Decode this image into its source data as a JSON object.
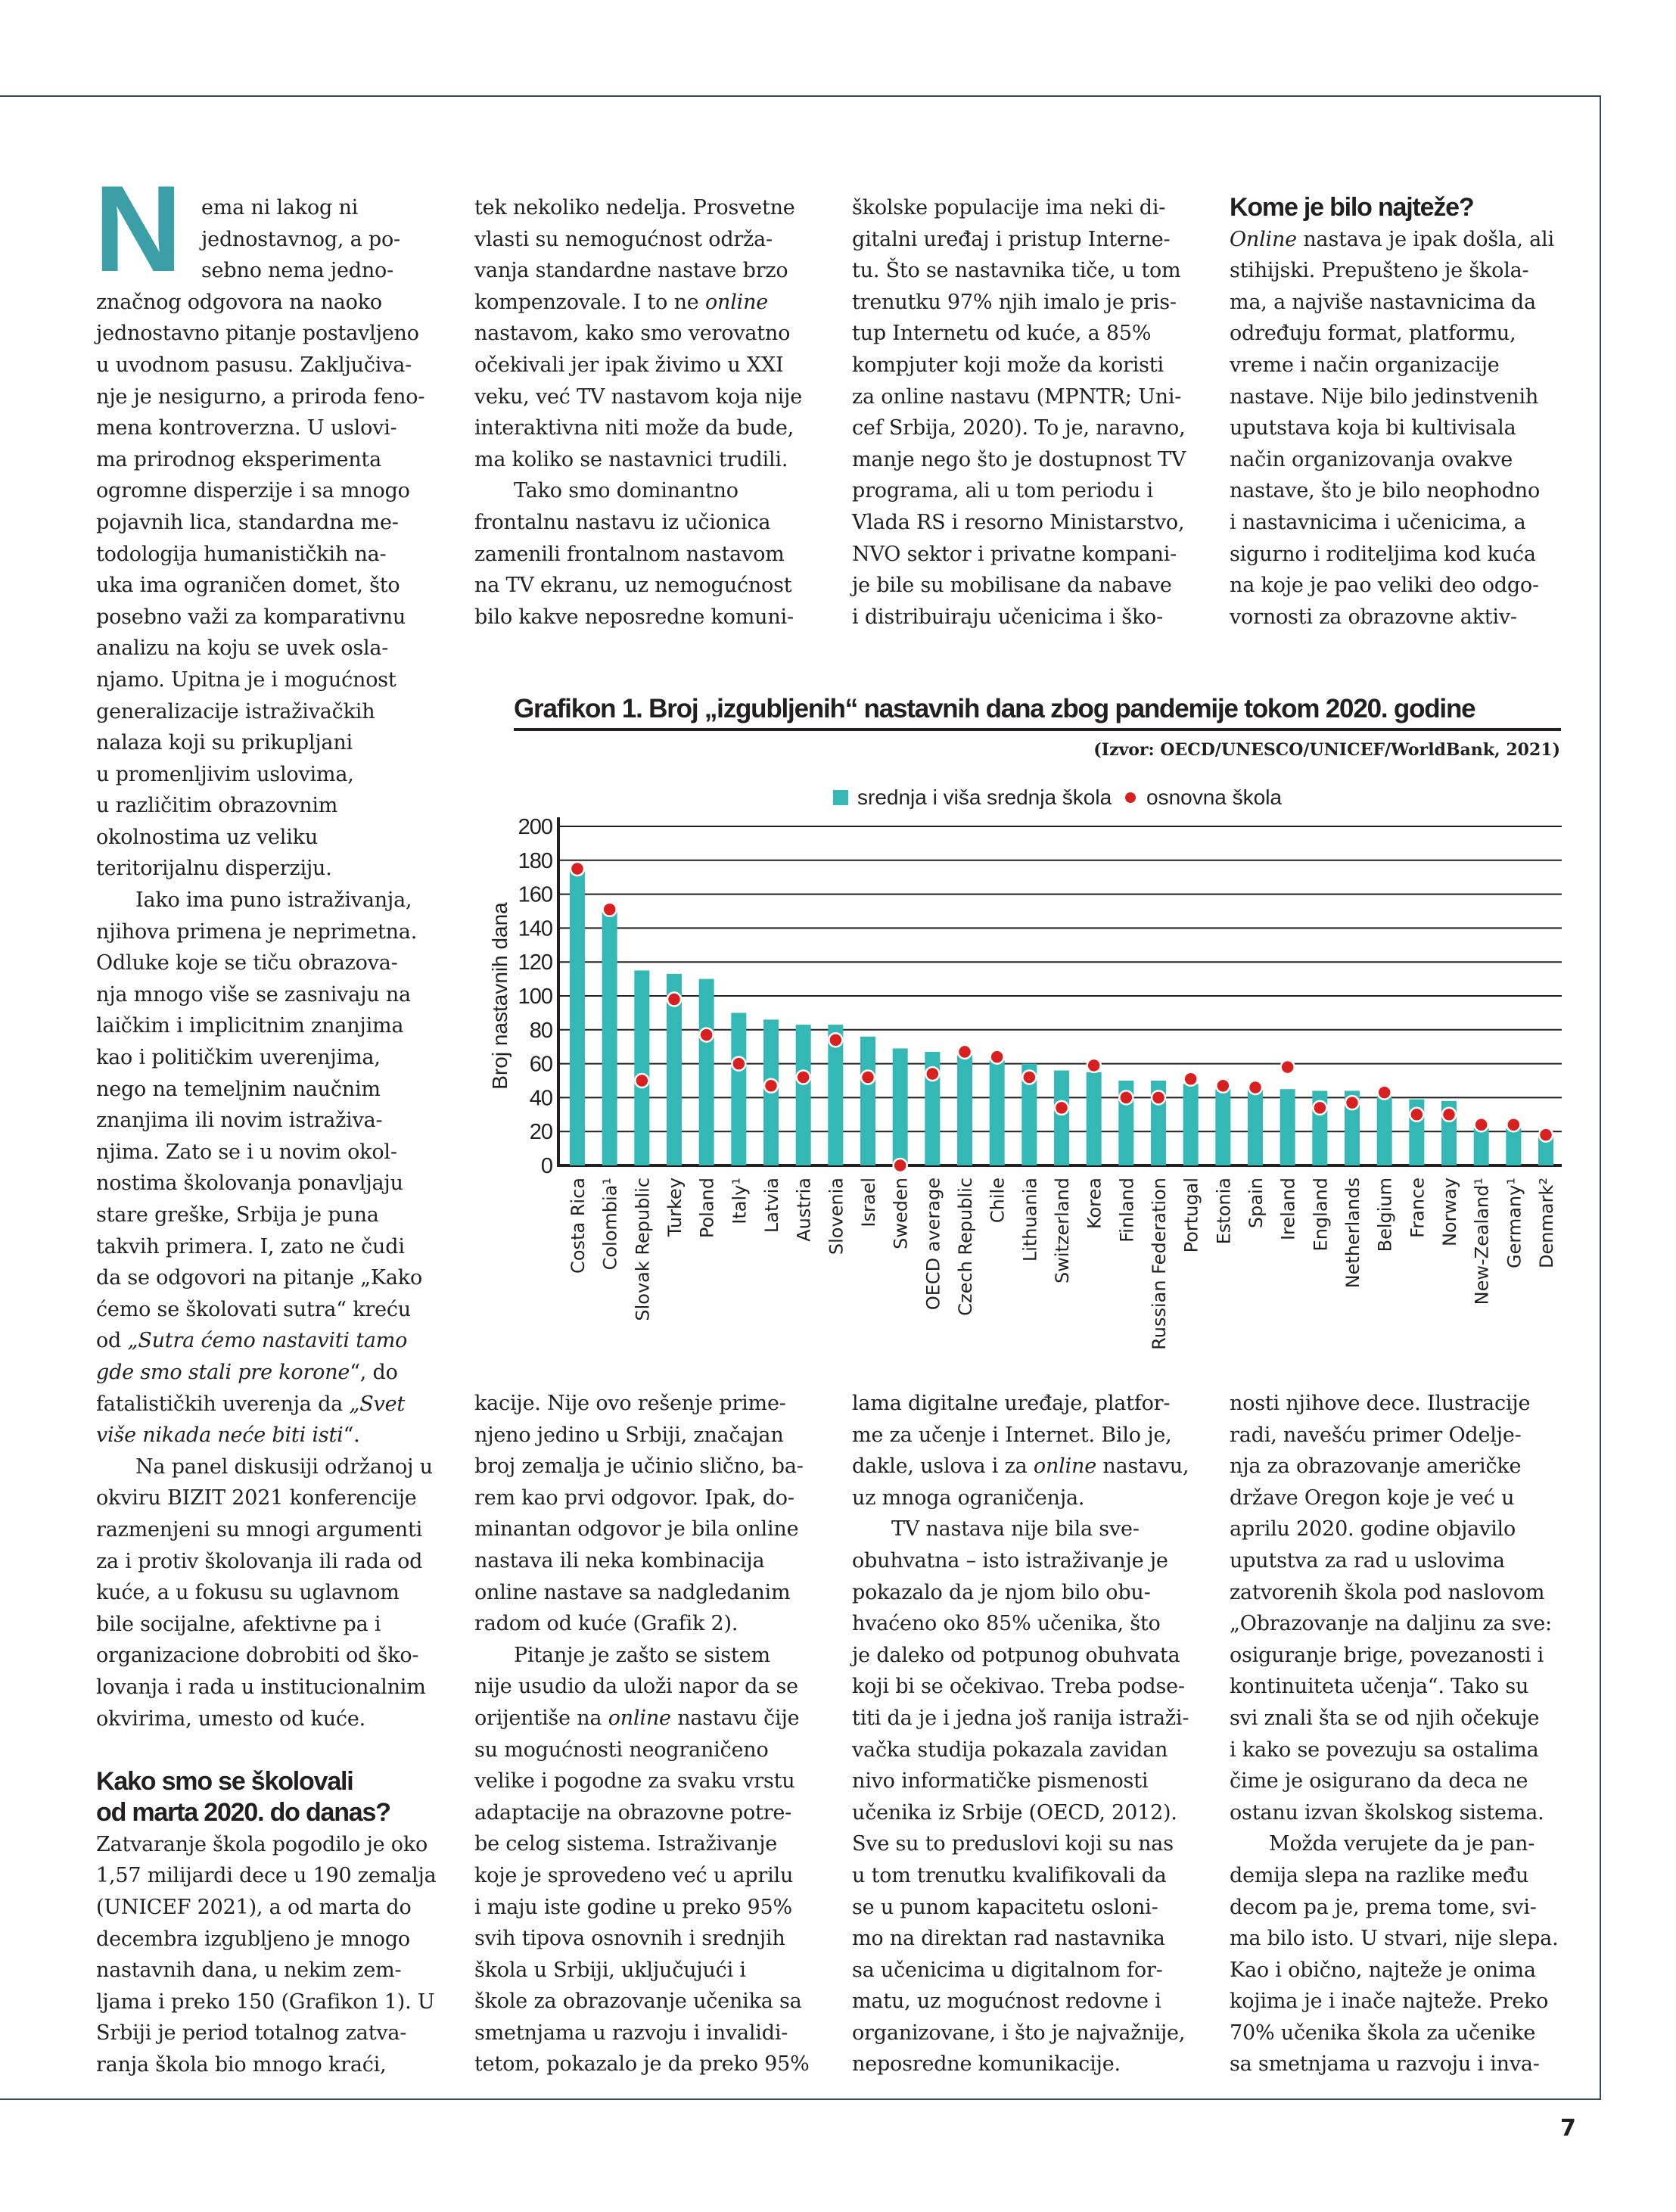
{
  "page_number": "7",
  "dropcap": "N",
  "colors": {
    "bar": "#33b8b5",
    "dot": "#d7201f",
    "dropcap": "#3a9fa6",
    "frame": "#2d4b5c"
  },
  "columns": {
    "c1": [
      {
        "dc": true,
        "s": "ema ni lakog ni"
      },
      {
        "dc": true,
        "s": "jednostavnog, a po-"
      },
      {
        "dc": true,
        "s": "sebno nema jedno-"
      },
      {
        "s": "značnog odgovora na naoko"
      },
      {
        "s": "jednostavno pitanje postavljeno"
      },
      {
        "s": "u uvodnom pasusu. Zaključiva-"
      },
      {
        "s": "nje je nesigurno, a priroda feno-"
      },
      {
        "s": "mena kontroverzna. U uslovi-"
      },
      {
        "s": "ma prirodnog eksperimenta"
      },
      {
        "s": "ogromne disperzije i sa mnogo"
      },
      {
        "s": "pojavnih lica, standardna me-"
      },
      {
        "s": "todologija humanističkih na-"
      },
      {
        "s": "uka ima ograničen domet, što"
      },
      {
        "s": "posebno važi za komparativnu"
      },
      {
        "s": "analizu na koju se uvek osla-"
      },
      {
        "s": "njamo. Upitna je i mogućnost"
      },
      {
        "s": "generalizacije istraživačkih"
      },
      {
        "s": "nalaza koji su prikupljani"
      },
      {
        "s": "u promenljivim uslovima,"
      },
      {
        "s": "u različitim obrazovnim"
      },
      {
        "s": "okolnostima uz veliku"
      },
      {
        "s": "teritorijalnu disperziju."
      },
      {
        "indent": true,
        "s": "Iako ima puno istraživanja,"
      },
      {
        "s": "njihova primena je neprimetna."
      },
      {
        "s": "Odluke koje se tiču obrazova-"
      },
      {
        "s": "nja mnogo više se zasnivaju na"
      },
      {
        "s": "laičkim i implicitnim znanjima"
      },
      {
        "s": "kao i političkim uverenjima,"
      },
      {
        "s": "nego na temeljnim naučnim"
      },
      {
        "s": "znanjima ili novim istraživa-"
      },
      {
        "s": "njima. Zato se i u novim okol-"
      },
      {
        "s": "nostima školovanja ponavljaju"
      },
      {
        "s": "stare greške, Srbija je puna"
      },
      {
        "s": "takvih primera. I, zato ne čudi"
      },
      {
        "s": "da se odgovori na pitanje „Kako"
      },
      {
        "s": "ćemo se školovati sutra“ kreću"
      },
      {
        "s": "od ",
        "it": "„Sutra ćemo nastaviti tamo"
      },
      {
        "it": "gde smo stali pre korone",
        "after": "“, do"
      },
      {
        "s": "fatalističkih uverenja da ",
        "it": "„Svet"
      },
      {
        "it": "više nikada neće biti isti",
        "after": "“."
      },
      {
        "indent": true,
        "s": "Na panel diskusiji održanoj u"
      },
      {
        "s": "okviru BIZIT 2021 konferencije"
      },
      {
        "s": "razmenjeni su mnogi argumenti"
      },
      {
        "s": "za i protiv školovanja ili rada od"
      },
      {
        "s": "kuće, a u fokusu su uglavnom"
      },
      {
        "s": "bile socijalne, afektivne pa i"
      },
      {
        "s": "organizacione dobrobiti od ško-"
      },
      {
        "s": "lovanja i rada u institucionalnim"
      },
      {
        "s": "okvirima, umesto od kuće."
      },
      {
        "blank": true
      },
      {
        "h": true,
        "s": "Kako smo se školovali"
      },
      {
        "h": true,
        "s": "od marta 2020. do danas?"
      },
      {
        "s": "Zatvaranje škola pogodilo je oko"
      },
      {
        "s": "1,57 milijardi dece u 190 zemalja"
      },
      {
        "s": "(UNICEF 2021), a od marta do"
      },
      {
        "s": "decembra izgubljeno je mnogo"
      },
      {
        "s": "nastavnih dana, u nekim zem-"
      },
      {
        "s": "ljama i preko 150 (Grafikon 1). U"
      },
      {
        "s": "Srbiji je period totalnog zatva-"
      },
      {
        "s": "ranja škola bio mnogo kraći,"
      }
    ],
    "c2t": [
      {
        "s": "tek nekoliko nedelja. Prosvetne"
      },
      {
        "s": "vlasti su nemogućnost održa-"
      },
      {
        "s": "vanja standardne nastave brzo"
      },
      {
        "s": "kompenzovale. I to ne ",
        "it": "online"
      },
      {
        "s": "nastavom, kako smo verovatno"
      },
      {
        "s": "očekivali jer ipak živimo u XXI"
      },
      {
        "s": "veku, već TV nastavom koja nije"
      },
      {
        "s": "interaktivna niti može da bude,"
      },
      {
        "s": "ma koliko se nastavnici trudili."
      },
      {
        "indent": true,
        "s": "Tako smo dominantno"
      },
      {
        "s": "frontalnu nastavu iz učionica"
      },
      {
        "s": "zamenili frontalnom nastavom"
      },
      {
        "s": "na TV ekranu, uz nemogućnost"
      },
      {
        "s": "bilo kakve neposredne komuni-"
      }
    ],
    "c3t": [
      {
        "s": "školske populacije ima neki di-"
      },
      {
        "s": "gitalni uređaj i pristup Interne-"
      },
      {
        "s": "tu. Što se nastavnika tiče, u tom"
      },
      {
        "s": "trenutku 97% njih imalo je pris-"
      },
      {
        "s": "tup Internetu od kuće, a 85%"
      },
      {
        "s": "kompjuter koji može da koristi"
      },
      {
        "s": "za online nastavu (MPNTR; Uni-"
      },
      {
        "s": "cef Srbija, 2020). To je, naravno,"
      },
      {
        "s": "manje nego što je dostupnost TV"
      },
      {
        "s": "programa, ali u tom periodu i"
      },
      {
        "s": "Vlada RS i resorno Ministarstvo,"
      },
      {
        "s": "NVO sektor i privatne kompani-"
      },
      {
        "s": "je bile su mobilisane da nabave"
      },
      {
        "s": "i distribuiraju učenicima i ško-"
      }
    ],
    "c4t": [
      {
        "h": true,
        "s": "Kome je bilo najteže?"
      },
      {
        "it": "Online",
        "after": " nastava je ipak došla, ali"
      },
      {
        "s": "stihijski. Prepušteno je škola-"
      },
      {
        "s": "ma, a najviše nastavnicima da"
      },
      {
        "s": "određuju format, platformu,"
      },
      {
        "s": "vreme i način organizacije"
      },
      {
        "s": "nastave. Nije bilo jedinstvenih"
      },
      {
        "s": "uputstava koja bi kultivisala"
      },
      {
        "s": "način organizovanja ovakve"
      },
      {
        "s": "nastave, što je bilo neophodno"
      },
      {
        "s": "i nastavnicima i učenicima, a"
      },
      {
        "s": "sigurno i roditeljima kod kuća"
      },
      {
        "s": "na koje je pao veliki deo odgo-"
      },
      {
        "s": "vornosti za obrazovne aktiv-"
      }
    ],
    "c2b": [
      {
        "s": "kacije. Nije ovo rešenje prime-"
      },
      {
        "s": "njeno jedino u Srbiji, značajan"
      },
      {
        "s": "broj zemalja je učinio slično, ba-"
      },
      {
        "s": "rem kao prvi odgovor. Ipak, do-"
      },
      {
        "s": "minantan odgovor je bila online"
      },
      {
        "s": "nastava ili neka kombinacija"
      },
      {
        "s": "online nastave sa nadgledanim"
      },
      {
        "s": "radom od kuće (Grafik 2)."
      },
      {
        "indent": true,
        "s": "Pitanje je zašto se sistem"
      },
      {
        "s": "nije usudio da uloži napor da se"
      },
      {
        "s": "orijentiše na ",
        "it": "online",
        "after": " nastavu čije"
      },
      {
        "s": "su mogućnosti neograničeno"
      },
      {
        "s": "velike i pogodne za svaku vrstu"
      },
      {
        "s": "adaptacije na obrazovne potre-"
      },
      {
        "s": "be celog sistema. Istraživanje"
      },
      {
        "s": "koje je sprovedeno već u aprilu"
      },
      {
        "s": "i maju iste godine u preko 95%"
      },
      {
        "s": "svih tipova osnovnih i srednjih"
      },
      {
        "s": "škola u Srbiji, uključujući i"
      },
      {
        "s": "škole za obrazovanje učenika sa"
      },
      {
        "s": "smetnjama u razvoju i invalidi-"
      },
      {
        "s": "tetom, pokazalo je da preko 95%"
      }
    ],
    "c3b": [
      {
        "s": "lama digitalne uređaje, platfor-"
      },
      {
        "s": "me za učenje i Internet. Bilo je,"
      },
      {
        "s": "dakle, uslova i za ",
        "it": "online",
        "after": " nastavu,"
      },
      {
        "s": "uz mnoga ograničenja."
      },
      {
        "indent": true,
        "s": "TV nastava nije bila sve-"
      },
      {
        "s": "obuhvatna – isto istraživanje je"
      },
      {
        "s": "pokazalo da je njom bilo obu-"
      },
      {
        "s": "hvaćeno oko 85% učenika, što"
      },
      {
        "s": "je daleko od potpunog obuhvata"
      },
      {
        "s": "koji bi se očekivao. Treba podse-"
      },
      {
        "s": "titi da je i jedna još ranija istraži-"
      },
      {
        "s": "vačka studija pokazala zavidan"
      },
      {
        "s": "nivo informatičke pismenosti"
      },
      {
        "s": "učenika iz Srbije (OECD, 2012)."
      },
      {
        "s": "Sve su to preduslovi koji su nas"
      },
      {
        "s": "u tom trenutku kvalifikovali da"
      },
      {
        "s": "se u punom kapacitetu osloni-"
      },
      {
        "s": "mo na direktan rad nastavnika"
      },
      {
        "s": "sa učenicima u digitalnom for-"
      },
      {
        "s": "matu, uz mogućnost redovne i"
      },
      {
        "s": "organizovane, i što je najvažnije,"
      },
      {
        "s": "neposredne komunikacije."
      }
    ],
    "c4b": [
      {
        "s": "nosti njihove dece. Ilustracije"
      },
      {
        "s": "radi, navešću primer Odelje-"
      },
      {
        "s": "nja za obrazovanje američke"
      },
      {
        "s": "države Oregon koje je već u"
      },
      {
        "s": "aprilu 2020. godine objavilo"
      },
      {
        "s": "uputstva za rad u uslovima"
      },
      {
        "s": "zatvorenih škola pod naslovom"
      },
      {
        "s": "„Obrazovanje na daljinu za sve:"
      },
      {
        "s": "osiguranje brige, povezanosti i"
      },
      {
        "s": "kontinuiteta učenja“. Tako su"
      },
      {
        "s": "svi znali šta se od njih očekuje"
      },
      {
        "s": "i kako se povezuju sa ostalima"
      },
      {
        "s": "čime je osigurano da deca ne"
      },
      {
        "s": "ostanu izvan školskog sistema."
      },
      {
        "indent": true,
        "s": "Možda verujete da je pan-"
      },
      {
        "s": "demija slepa na razlike među"
      },
      {
        "s": "decom pa je, prema tome, svi-"
      },
      {
        "s": "ma bilo isto. U stvari, nije slepa."
      },
      {
        "s": "Kao i obično, najteže je onima"
      },
      {
        "s": "kojima je i inače najteže. Preko"
      },
      {
        "s": "70% učenika škola za učenike"
      },
      {
        "s": "sa smetnjama u razvoju i inva-"
      }
    ]
  },
  "chart_data": {
    "type": "bar",
    "title": "Grafikon 1. Broj „izgubljenih“ nastavnih dana zbog pandemije tokom 2020. godine",
    "source": "(Izvor: OECD/UNESCO/UNICEF/WorldBank, 2021)",
    "xlabel": "",
    "ylabel": "Broj nastavnih dana",
    "ylim": [
      0,
      200
    ],
    "yticks": [
      0,
      20,
      40,
      60,
      80,
      100,
      120,
      140,
      160,
      180,
      200
    ],
    "grid": true,
    "legend_position": "top",
    "categories": [
      "Costa Rica",
      "Colombia¹",
      "Slovak Republic",
      "Turkey",
      "Poland",
      "Italy¹",
      "Latvia",
      "Austria",
      "Slovenia",
      "Israel",
      "Sweden",
      "OECD average",
      "Czech Republic",
      "Chile",
      "Lithuania",
      "Switzerland",
      "Korea",
      "Finland",
      "Russian Federation",
      "Portugal",
      "Estonia",
      "Spain",
      "Ireland",
      "England",
      "Netherlands",
      "Belgium",
      "France",
      "Norway",
      "New-Zealand¹",
      "Germany¹",
      "Denmark²"
    ],
    "series": [
      {
        "name": "srednja i viša srednja škola",
        "kind": "bar",
        "color": "#33b8b5",
        "values": [
          174,
          150,
          115,
          113,
          110,
          90,
          86,
          83,
          83,
          76,
          69,
          67,
          65,
          62,
          60,
          56,
          55,
          50,
          50,
          48,
          45,
          45,
          45,
          44,
          44,
          41,
          39,
          38,
          22,
          22,
          17
        ]
      },
      {
        "name": "osnovna škola",
        "kind": "dot",
        "color": "#d7201f",
        "values": [
          175,
          151,
          50,
          98,
          77,
          60,
          47,
          52,
          74,
          52,
          0,
          54,
          67,
          64,
          52,
          34,
          59,
          40,
          40,
          51,
          47,
          46,
          58,
          34,
          37,
          43,
          30,
          30,
          24,
          24,
          18
        ]
      }
    ]
  }
}
